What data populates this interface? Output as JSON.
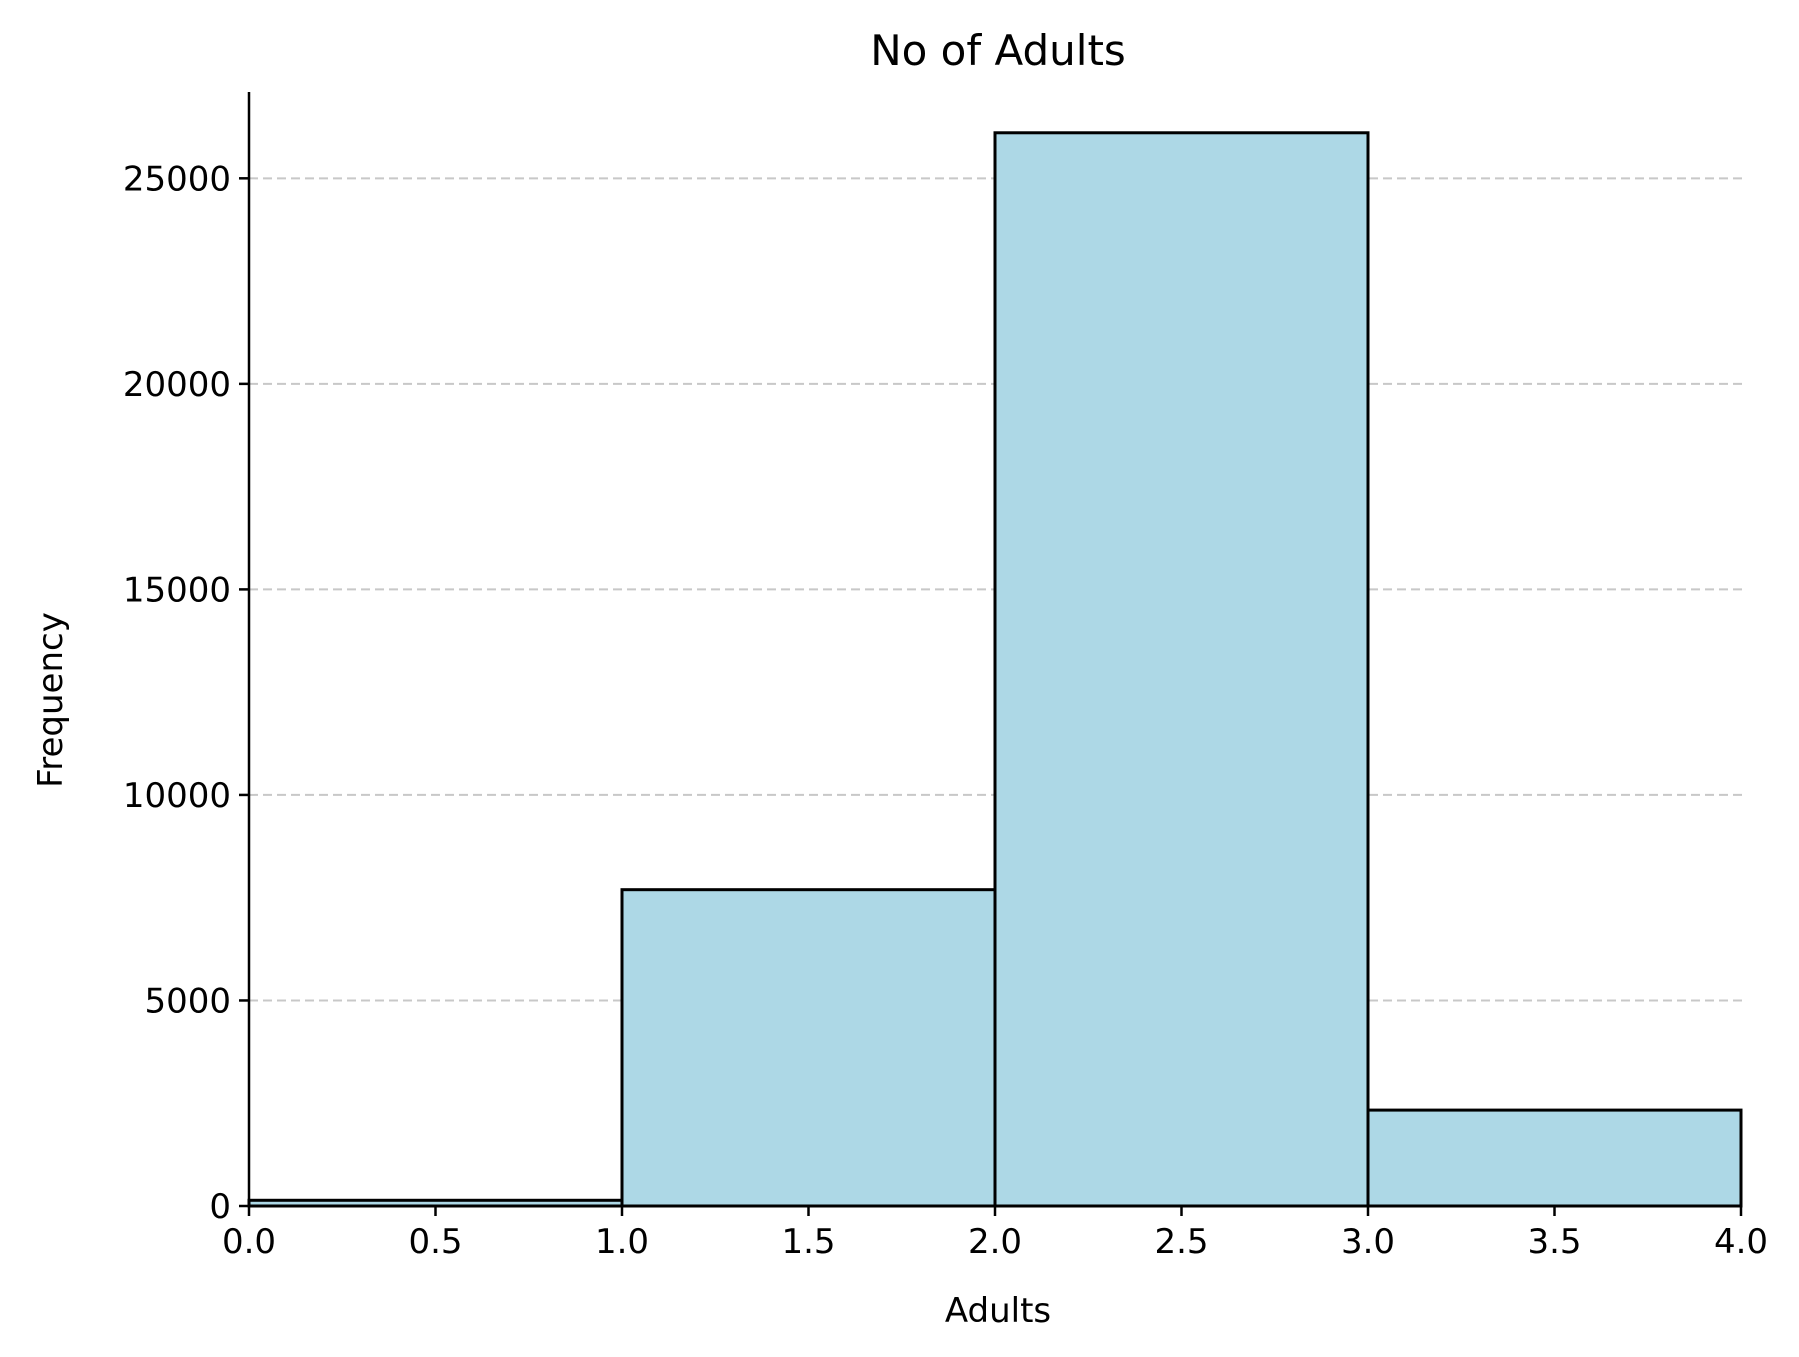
{
  "chart_data": {
    "type": "bar",
    "title": "No of Adults",
    "xlabel": "Adults",
    "ylabel": "Frequency",
    "bins": [
      {
        "x0": 0.0,
        "x1": 1.0,
        "count": 139
      },
      {
        "x0": 1.0,
        "x1": 2.0,
        "count": 7695
      },
      {
        "x0": 2.0,
        "x1": 3.0,
        "count": 26108
      },
      {
        "x0": 3.0,
        "x1": 4.0,
        "count": 2333
      }
    ],
    "xlim": [
      0.0,
      4.0
    ],
    "ylim": [
      0,
      27100
    ],
    "x_ticks": [
      "0.0",
      "0.5",
      "1.0",
      "1.5",
      "2.0",
      "2.5",
      "3.0",
      "3.5",
      "4.0"
    ],
    "x_tick_values": [
      0.0,
      0.5,
      1.0,
      1.5,
      2.0,
      2.5,
      3.0,
      3.5,
      4.0
    ],
    "y_ticks": [
      "0",
      "5000",
      "10000",
      "15000",
      "20000",
      "25000"
    ],
    "y_tick_values": [
      0,
      5000,
      10000,
      15000,
      20000,
      25000
    ],
    "grid": "y-dashed",
    "colors": {
      "bar_fill": "#add8e6",
      "bar_edge": "#000000",
      "grid": "#c8c8c8",
      "axis": "#000000"
    }
  }
}
